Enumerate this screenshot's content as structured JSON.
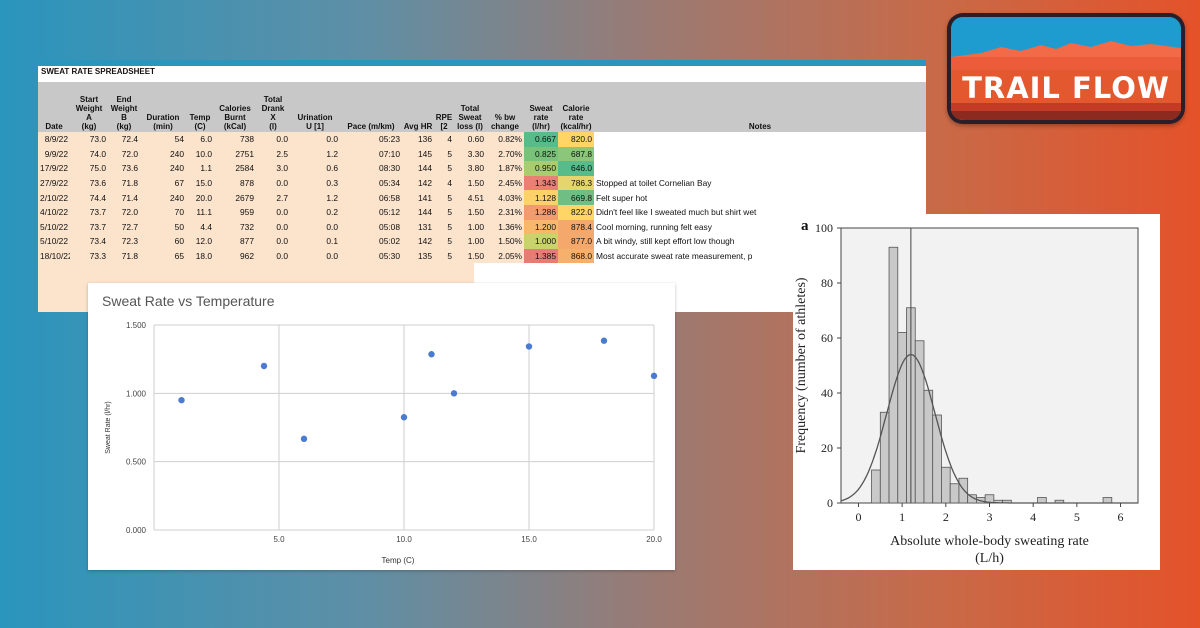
{
  "logo": {
    "text": "TRAIL FLOW"
  },
  "spreadsheet": {
    "title": "SWEAT RATE SPREADSHEET",
    "headers": [
      "Date",
      "Start\nWeight\nA\n(kg)",
      "End\nWeight\nB\n(kg)",
      "Duration\n(min)",
      "Temp\n(C)",
      "Calories\nBurnt\n(kCal)",
      "Total\nDrank\nX\n(l)",
      "Urination\nU [1]",
      "Pace (m/km)",
      "Avg HR",
      "RPE [2",
      "Total\nSweat\nloss (l)",
      "% bw\nchange",
      "Sweat\nrate\n(l/hr)",
      "Calorie\nrate\n(kcal/hr)",
      "Notes"
    ],
    "rows": [
      {
        "date": "8/9/22",
        "start": "73.0",
        "end": "72.4",
        "dur": "54",
        "temp": "6.0",
        "cal": "738",
        "drank": "0.0",
        "urin": "0.0",
        "pace": "05:23",
        "hr": "136",
        "rpe": "4",
        "loss": "0.60",
        "bw": "0.82%",
        "rate": "0.667",
        "calrate": "820.0",
        "notes": "",
        "rate_color": "#57bb8a",
        "calrate_color": "#ffd666"
      },
      {
        "date": "9/9/22",
        "start": "74.0",
        "end": "72.0",
        "dur": "240",
        "temp": "10.0",
        "cal": "2751",
        "drank": "2.5",
        "urin": "1.2",
        "pace": "07:10",
        "hr": "145",
        "rpe": "5",
        "loss": "3.30",
        "bw": "2.70%",
        "rate": "0.825",
        "calrate": "687.8",
        "notes": "",
        "rate_color": "#79c27a",
        "calrate_color": "#8cc67a"
      },
      {
        "date": "17/9/22",
        "start": "75.0",
        "end": "73.6",
        "dur": "240",
        "temp": "1.1",
        "cal": "2584",
        "drank": "3.0",
        "urin": "0.6",
        "pace": "08:30",
        "hr": "144",
        "rpe": "5",
        "loss": "3.80",
        "bw": "1.87%",
        "rate": "0.950",
        "calrate": "646.0",
        "notes": "",
        "rate_color": "#a8cd6e",
        "calrate_color": "#57bb8a"
      },
      {
        "date": "27/9/22",
        "start": "73.6",
        "end": "71.8",
        "dur": "67",
        "temp": "15.0",
        "cal": "878",
        "drank": "0.0",
        "urin": "0.3",
        "pace": "05:34",
        "hr": "142",
        "rpe": "4",
        "loss": "1.50",
        "bw": "2.45%",
        "rate": "1.343",
        "calrate": "786.3",
        "notes": "Stopped at toilet Cornelian Bay",
        "rate_color": "#ea8074",
        "calrate_color": "#e6d46c"
      },
      {
        "date": "2/10/22",
        "start": "74.4",
        "end": "71.4",
        "dur": "240",
        "temp": "20.0",
        "cal": "2679",
        "drank": "2.7",
        "urin": "1.2",
        "pace": "06:58",
        "hr": "141",
        "rpe": "5",
        "loss": "4.51",
        "bw": "4.03%",
        "rate": "1.128",
        "calrate": "669.8",
        "notes": "Felt super hot",
        "rate_color": "#fdd16a",
        "calrate_color": "#6fbf84"
      },
      {
        "date": "4/10/22",
        "start": "73.7",
        "end": "72.0",
        "dur": "70",
        "temp": "11.1",
        "cal": "959",
        "drank": "0.0",
        "urin": "0.2",
        "pace": "05:12",
        "hr": "144",
        "rpe": "5",
        "loss": "1.50",
        "bw": "2.31%",
        "rate": "1.286",
        "calrate": "822.0",
        "notes": "Didn't feel like I sweated much but shirt wet",
        "rate_color": "#f19b6e",
        "calrate_color": "#ffd666"
      },
      {
        "date": "5/10/22",
        "start": "73.7",
        "end": "72.7",
        "dur": "50",
        "temp": "4.4",
        "cal": "732",
        "drank": "0.0",
        "urin": "0.0",
        "pace": "05:08",
        "hr": "131",
        "rpe": "5",
        "loss": "1.00",
        "bw": "1.36%",
        "rate": "1.200",
        "calrate": "878.4",
        "notes": "Cool morning, running felt easy",
        "rate_color": "#f8b86c",
        "calrate_color": "#f4a86c"
      },
      {
        "date": "5/10/22",
        "start": "73.4",
        "end": "72.3",
        "dur": "60",
        "temp": "12.0",
        "cal": "877",
        "drank": "0.0",
        "urin": "0.1",
        "pace": "05:02",
        "hr": "142",
        "rpe": "5",
        "loss": "1.00",
        "bw": "1.50%",
        "rate": "1.000",
        "calrate": "877.0",
        "notes": "A bit windy, still kept effort low though",
        "rate_color": "#c9d36c",
        "calrate_color": "#f4a86c"
      },
      {
        "date": "18/10/22",
        "start": "73.3",
        "end": "71.8",
        "dur": "65",
        "temp": "18.0",
        "cal": "962",
        "drank": "0.0",
        "urin": "0.0",
        "pace": "05:30",
        "hr": "135",
        "rpe": "5",
        "loss": "1.50",
        "bw": "2.05%",
        "rate": "1.385",
        "calrate": "868.0",
        "notes": "Most accurate sweat rate measurement, p",
        "rate_color": "#e67c73",
        "calrate_color": "#f6b06b"
      }
    ]
  },
  "chart_data": [
    {
      "type": "scatter",
      "title": "Sweat Rate vs Temperature",
      "xlabel": "Temp (C)",
      "ylabel": "Sweat Rate (l/hr)",
      "xlim": [
        0,
        20
      ],
      "ylim": [
        0,
        1.5
      ],
      "xticks": [
        "5.0",
        "10.0",
        "15.0",
        "20.0"
      ],
      "yticks": [
        "0.000",
        "0.500",
        "1.000",
        "1.500"
      ],
      "grid": true,
      "color": "#4a7bd0",
      "points": [
        {
          "x": 1.1,
          "y": 0.95
        },
        {
          "x": 4.4,
          "y": 1.2
        },
        {
          "x": 6.0,
          "y": 0.667
        },
        {
          "x": 10.0,
          "y": 0.825
        },
        {
          "x": 11.1,
          "y": 1.286
        },
        {
          "x": 12.0,
          "y": 1.0
        },
        {
          "x": 15.0,
          "y": 1.343
        },
        {
          "x": 18.0,
          "y": 1.385
        },
        {
          "x": 20.0,
          "y": 1.128
        }
      ]
    },
    {
      "type": "bar",
      "panel_label": "a",
      "xlabel": "Absolute whole-body sweating rate\n(L/h)",
      "ylabel": "Frequency (number of athletes)",
      "xlim": [
        -0.4,
        6.4
      ],
      "ylim": [
        0,
        100
      ],
      "xticks": [
        "0",
        "1",
        "2",
        "3",
        "4",
        "5",
        "6"
      ],
      "yticks": [
        "0",
        "20",
        "40",
        "60",
        "80",
        "100"
      ],
      "mean_line_x": 1.2,
      "bin_width": 0.2,
      "bins": [
        {
          "x": 0.4,
          "y": 12
        },
        {
          "x": 0.6,
          "y": 33
        },
        {
          "x": 0.8,
          "y": 93
        },
        {
          "x": 1.0,
          "y": 62
        },
        {
          "x": 1.2,
          "y": 71
        },
        {
          "x": 1.4,
          "y": 59
        },
        {
          "x": 1.6,
          "y": 41
        },
        {
          "x": 1.8,
          "y": 32
        },
        {
          "x": 2.0,
          "y": 13
        },
        {
          "x": 2.2,
          "y": 7
        },
        {
          "x": 2.4,
          "y": 9
        },
        {
          "x": 2.6,
          "y": 3
        },
        {
          "x": 2.8,
          "y": 2
        },
        {
          "x": 3.0,
          "y": 3
        },
        {
          "x": 3.2,
          "y": 1
        },
        {
          "x": 3.4,
          "y": 1
        },
        {
          "x": 4.2,
          "y": 2
        },
        {
          "x": 4.6,
          "y": 1
        },
        {
          "x": 5.7,
          "y": 2
        }
      ],
      "normal_fit": {
        "mean": 1.2,
        "sd": 0.55,
        "peak": 54
      }
    }
  ]
}
